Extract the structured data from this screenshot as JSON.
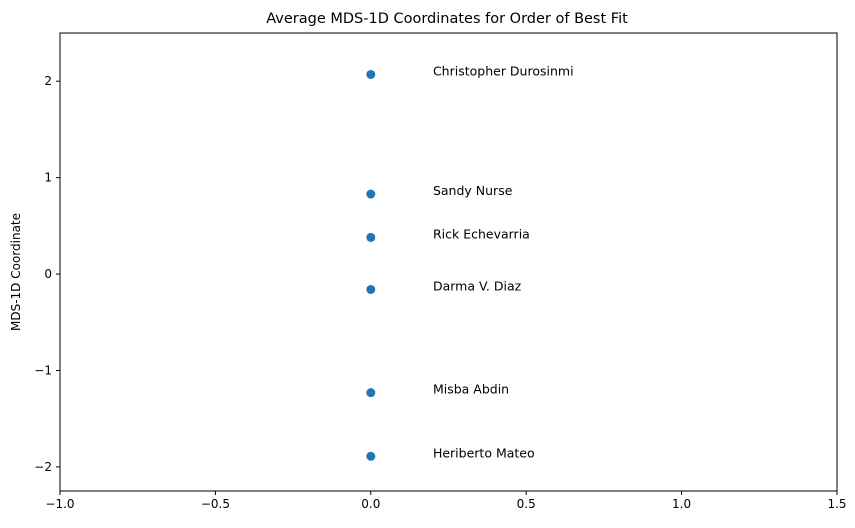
{
  "chart_data": {
    "type": "scatter",
    "title": "Average MDS-1D Coordinates for Order of Best Fit",
    "xlabel": "",
    "ylabel": "MDS-1D Coordinate",
    "xlim": [
      -1.0,
      1.5
    ],
    "ylim": [
      -2.25,
      2.5
    ],
    "xticks": [
      -1.0,
      -0.5,
      0.0,
      0.5,
      1.0,
      1.5
    ],
    "xtick_labels": [
      "−1.0",
      "−0.5",
      "0.0",
      "0.5",
      "1.0",
      "1.5"
    ],
    "yticks": [
      -2,
      -1,
      0,
      1,
      2
    ],
    "ytick_labels": [
      "−2",
      "−1",
      "0",
      "1",
      "2"
    ],
    "grid": false,
    "marker_color": "#1f77b4",
    "label_offset_x": 0.2,
    "points": [
      {
        "x": 0.0,
        "y": 2.07,
        "label": "Christopher Durosinmi"
      },
      {
        "x": 0.0,
        "y": 0.83,
        "label": "Sandy Nurse"
      },
      {
        "x": 0.0,
        "y": 0.38,
        "label": "Rick Echevarria"
      },
      {
        "x": 0.0,
        "y": -0.16,
        "label": "Darma V. Diaz"
      },
      {
        "x": 0.0,
        "y": -1.23,
        "label": "Misba Abdin"
      },
      {
        "x": 0.0,
        "y": -1.89,
        "label": "Heriberto Mateo"
      }
    ]
  }
}
